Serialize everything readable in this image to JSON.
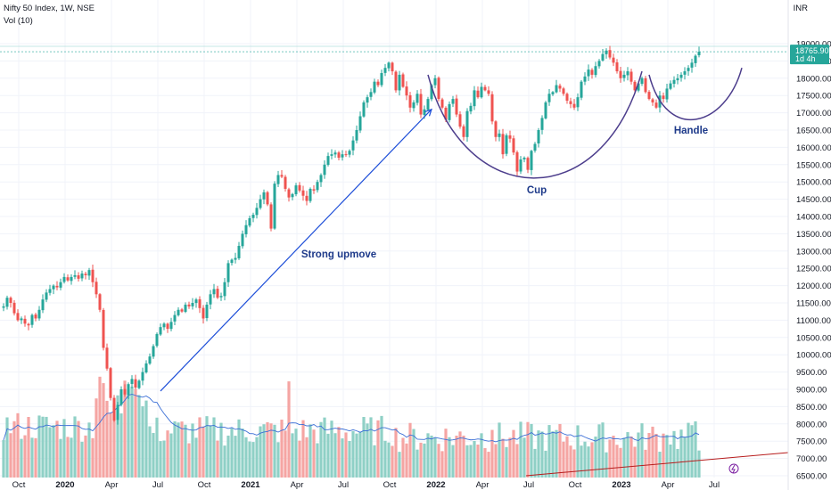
{
  "header": {
    "title": "Nifty 50 Index, 1W, NSE",
    "volume_label": "Vol (10)",
    "currency": "INR"
  },
  "price_tag": {
    "price": "18765.90",
    "countdown": "1d 4h"
  },
  "chart_data": {
    "type": "candlestick",
    "ylim": [
      6400,
      19600
    ],
    "yticks": [
      6500,
      7000,
      7500,
      8000,
      8500,
      9000,
      9500,
      10000,
      10500,
      11000,
      11500,
      12000,
      12500,
      13000,
      13500,
      14000,
      14500,
      15000,
      15500,
      16000,
      16500,
      17000,
      17500,
      18000,
      18500,
      19000
    ],
    "ytick_labels": [
      "6500.00",
      "7000.00",
      "7500.00",
      "8000.00",
      "8500.00",
      "9000.00",
      "9500.00",
      "10000.00",
      "10500.00",
      "11000.00",
      "11500.00",
      "12000.00",
      "12500.00",
      "13000.00",
      "13500.00",
      "14000.00",
      "14500.00",
      "15000.00",
      "15500.00",
      "16000.00",
      "16500.00",
      "17000.00",
      "17500.00",
      "18000.00",
      "18500.00",
      "19000.00"
    ],
    "x_labels": [
      {
        "label": "Oct",
        "week": 5
      },
      {
        "label": "2020",
        "week": 18
      },
      {
        "label": "Apr",
        "week": 31
      },
      {
        "label": "Jul",
        "week": 44
      },
      {
        "label": "Oct",
        "week": 57
      },
      {
        "label": "2021",
        "week": 70
      },
      {
        "label": "Apr",
        "week": 83
      },
      {
        "label": "Jul",
        "week": 96
      },
      {
        "label": "Oct",
        "week": 109
      },
      {
        "label": "2022",
        "week": 122
      },
      {
        "label": "Apr",
        "week": 135
      },
      {
        "label": "Jul",
        "week": 148
      },
      {
        "label": "Oct",
        "week": 161
      },
      {
        "label": "2023",
        "week": 174
      },
      {
        "label": "Apr",
        "week": 187
      },
      {
        "label": "Jul",
        "week": 200
      }
    ],
    "weekly_close": [
      11400,
      11650,
      11500,
      11200,
      11000,
      11050,
      10900,
      10850,
      11150,
      11050,
      11300,
      11600,
      11800,
      11900,
      12000,
      11950,
      12100,
      12250,
      12150,
      12250,
      12300,
      12200,
      12350,
      12300,
      12450,
      12100,
      11750,
      11300,
      10200,
      9600,
      8750,
      8100,
      8550,
      9000,
      8850,
      9150,
      9300,
      9050,
      9250,
      9500,
      9750,
      9950,
      10250,
      10600,
      10800,
      10900,
      10750,
      10950,
      11150,
      11300,
      11250,
      11450,
      11400,
      11500,
      11600,
      11350,
      11050,
      11450,
      11750,
      11900,
      11650,
      11700,
      12100,
      12650,
      12750,
      12800,
      13150,
      13500,
      13750,
      13950,
      14050,
      14250,
      14500,
      14700,
      14350,
      13650,
      14950,
      15200,
      15150,
      14800,
      14550,
      14650,
      14900,
      14750,
      14600,
      14450,
      14800,
      14750,
      15000,
      15200,
      15500,
      15750,
      15800,
      15850,
      15700,
      15800,
      15800,
      15900,
      16200,
      16500,
      16900,
      17300,
      17450,
      17600,
      17900,
      17800,
      18150,
      18300,
      18450,
      18200,
      17650,
      18100,
      17750,
      17500,
      17150,
      17300,
      17550,
      16950,
      17100,
      17400,
      17800,
      18000,
      17400,
      17150,
      16800,
      17250,
      17400,
      16950,
      16600,
      16300,
      17050,
      17200,
      17650,
      17450,
      17750,
      17650,
      17550,
      16750,
      16300,
      16400,
      15800,
      16350,
      16250,
      15850,
      15300,
      15650,
      15700,
      15350,
      15900,
      16100,
      16500,
      16850,
      17300,
      17550,
      17600,
      17800,
      17700,
      17550,
      17350,
      17250,
      17150,
      17450,
      17900,
      18050,
      18250,
      18100,
      18350,
      18500,
      18700,
      18800,
      18600,
      18450,
      18200,
      18000,
      18100,
      18200,
      17900,
      17650,
      17850,
      18000,
      17600,
      17400,
      17300,
      17150,
      17500,
      17400,
      17700,
      17850,
      17950,
      18000,
      18100,
      18200,
      18300,
      18450,
      18650,
      18765.9
    ],
    "volume_average_line": "Vol (10) moving average",
    "annotations": [
      {
        "text": "Strong upmove",
        "kind": "arrow"
      },
      {
        "text": "Cup",
        "kind": "curve"
      },
      {
        "text": "Handle",
        "kind": "curve"
      }
    ],
    "colors": {
      "up": "#26a69a",
      "down": "#ef5350",
      "up_volume": "#8fd0c6",
      "down_volume": "#f5a5a3",
      "annotation_arrow": "#1d4ed8",
      "cup_handle_curve": "#4c3d8c",
      "volume_ma": "#3b6fd6",
      "trendline": "#b71c1c",
      "price_tag": "#26a69a"
    }
  }
}
